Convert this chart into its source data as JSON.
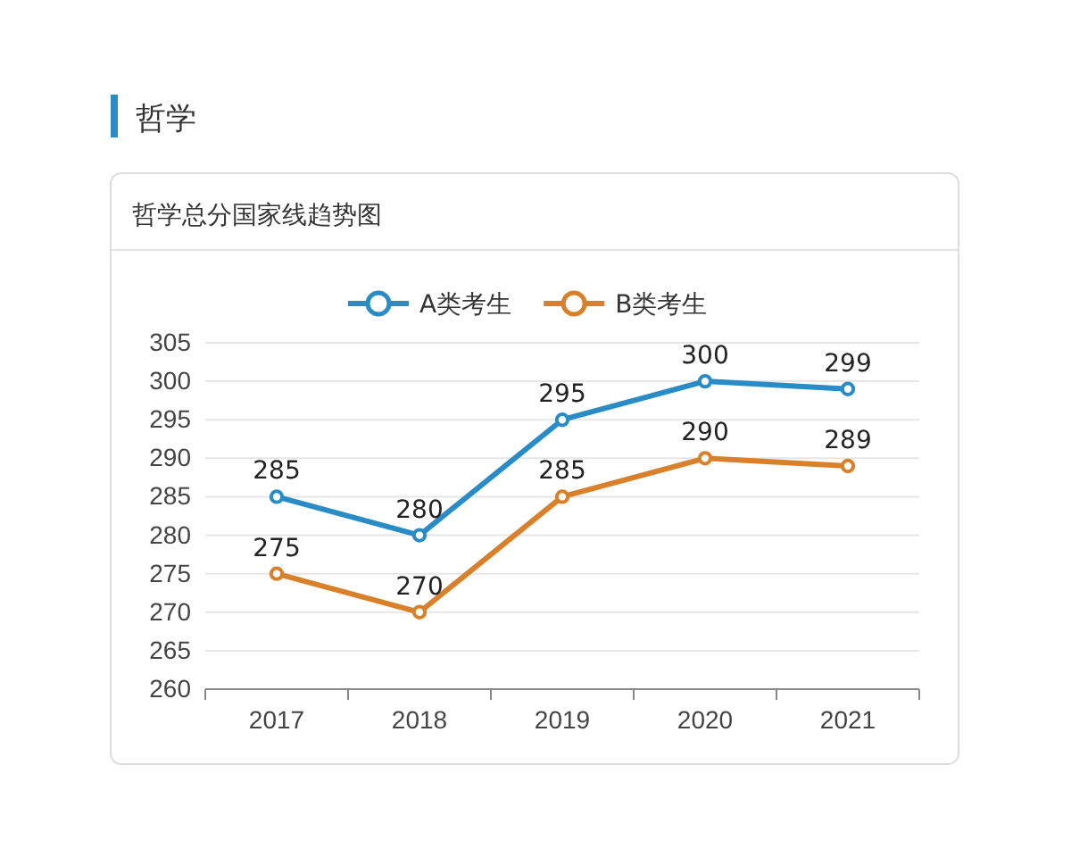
{
  "chart_data": {
    "type": "line",
    "title": "哲学",
    "subtitle": "哲学总分国家线趋势图",
    "categories": [
      "2017",
      "2018",
      "2019",
      "2020",
      "2021"
    ],
    "series": [
      {
        "name": "A类考生",
        "color": "#2a8cc6",
        "values": [
          285,
          280,
          295,
          300,
          299
        ]
      },
      {
        "name": "B类考生",
        "color": "#d8812a",
        "values": [
          275,
          270,
          285,
          290,
          289
        ]
      }
    ],
    "ylim": [
      260,
      305
    ],
    "yticks": [
      260,
      265,
      270,
      275,
      280,
      285,
      290,
      295,
      300,
      305
    ],
    "grid": "y",
    "legend": "top",
    "data_labels": true,
    "marker": "circle",
    "line_style": "solid"
  }
}
